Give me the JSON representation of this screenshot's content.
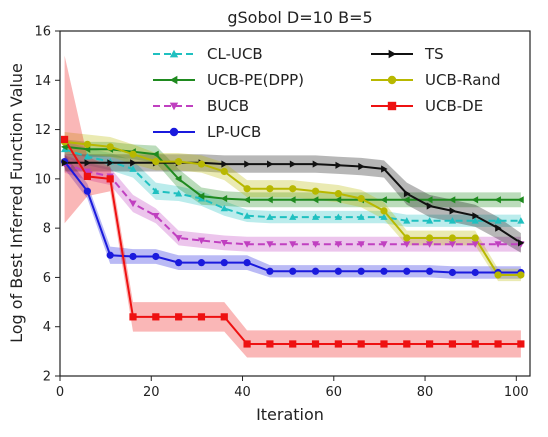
{
  "chart_data": {
    "type": "line",
    "title": "gSobol D=10 B=5",
    "xlabel": "Iteration",
    "ylabel": "Log of Best Inferred Function Value",
    "xlim": [
      0,
      103
    ],
    "ylim": [
      2,
      16
    ],
    "xticks": [
      0,
      20,
      40,
      60,
      80,
      100
    ],
    "yticks": [
      2,
      4,
      6,
      8,
      10,
      12,
      14,
      16
    ],
    "grid": false,
    "legend_position": "top",
    "series": [
      {
        "name": "CL-UCB",
        "color": "#1fc0c0",
        "marker": "triangle-up",
        "dash": "dashed",
        "x": [
          1,
          6,
          11,
          16,
          21,
          26,
          31,
          36,
          41,
          46,
          51,
          56,
          61,
          66,
          71,
          76,
          81,
          86,
          91,
          96,
          101
        ],
        "y": [
          11.2,
          10.9,
          10.7,
          10.4,
          9.5,
          9.4,
          9.2,
          8.8,
          8.5,
          8.45,
          8.45,
          8.45,
          8.45,
          8.45,
          8.45,
          8.3,
          8.3,
          8.3,
          8.3,
          8.3,
          8.3
        ],
        "band": [
          0.35,
          0.35,
          0.35,
          0.35,
          0.35,
          0.3,
          0.3,
          0.3,
          0.25,
          0.25,
          0.25,
          0.25,
          0.25,
          0.25,
          0.25,
          0.25,
          0.25,
          0.25,
          0.25,
          0.25,
          0.25
        ]
      },
      {
        "name": "UCB-PE(DPP)",
        "color": "#1f8a1f",
        "marker": "triangle-left",
        "dash": "solid",
        "x": [
          1,
          6,
          11,
          16,
          21,
          26,
          31,
          36,
          41,
          46,
          51,
          56,
          61,
          66,
          71,
          76,
          81,
          86,
          91,
          96,
          101
        ],
        "y": [
          11.3,
          11.2,
          11.2,
          11.1,
          11.0,
          10.0,
          9.3,
          9.2,
          9.15,
          9.15,
          9.15,
          9.15,
          9.15,
          9.15,
          9.15,
          9.15,
          9.15,
          9.15,
          9.15,
          9.15,
          9.15
        ],
        "band": [
          0.3,
          0.3,
          0.3,
          0.3,
          0.35,
          0.4,
          0.35,
          0.3,
          0.3,
          0.3,
          0.3,
          0.3,
          0.3,
          0.3,
          0.3,
          0.3,
          0.3,
          0.3,
          0.3,
          0.3,
          0.3
        ]
      },
      {
        "name": "BUCB",
        "color": "#c040c0",
        "marker": "triangle-down",
        "dash": "dashed",
        "x": [
          1,
          6,
          11,
          16,
          21,
          26,
          31,
          36,
          41,
          46,
          51,
          56,
          61,
          66,
          71,
          76,
          81,
          86,
          91,
          96,
          101
        ],
        "y": [
          10.6,
          10.3,
          10.1,
          9.0,
          8.5,
          7.6,
          7.5,
          7.4,
          7.35,
          7.35,
          7.35,
          7.35,
          7.35,
          7.35,
          7.35,
          7.35,
          7.35,
          7.35,
          7.35,
          7.35,
          7.35
        ],
        "band": [
          0.35,
          0.35,
          0.35,
          0.35,
          0.3,
          0.3,
          0.3,
          0.3,
          0.3,
          0.3,
          0.3,
          0.3,
          0.3,
          0.3,
          0.3,
          0.3,
          0.3,
          0.3,
          0.3,
          0.3,
          0.3
        ]
      },
      {
        "name": "LP-UCB",
        "color": "#1a1add",
        "marker": "circle",
        "dash": "solid",
        "x": [
          1,
          6,
          11,
          16,
          21,
          26,
          31,
          36,
          41,
          46,
          51,
          56,
          61,
          66,
          71,
          76,
          81,
          86,
          91,
          96,
          101
        ],
        "y": [
          10.7,
          9.5,
          6.9,
          6.85,
          6.85,
          6.6,
          6.6,
          6.6,
          6.6,
          6.25,
          6.25,
          6.25,
          6.25,
          6.25,
          6.25,
          6.25,
          6.25,
          6.2,
          6.2,
          6.2,
          6.2
        ],
        "band": [
          0.3,
          0.3,
          0.35,
          0.3,
          0.3,
          0.3,
          0.3,
          0.3,
          0.3,
          0.25,
          0.25,
          0.25,
          0.25,
          0.25,
          0.25,
          0.25,
          0.25,
          0.25,
          0.25,
          0.25,
          0.25
        ]
      },
      {
        "name": "TS",
        "color": "#111111",
        "marker": "triangle-right",
        "dash": "solid",
        "x": [
          1,
          6,
          11,
          16,
          21,
          26,
          31,
          36,
          41,
          46,
          51,
          56,
          61,
          66,
          71,
          76,
          81,
          86,
          91,
          96,
          101
        ],
        "y": [
          10.65,
          10.65,
          10.65,
          10.65,
          10.65,
          10.65,
          10.65,
          10.6,
          10.6,
          10.6,
          10.6,
          10.6,
          10.55,
          10.5,
          10.4,
          9.4,
          8.9,
          8.7,
          8.5,
          8.0,
          7.4
        ],
        "band": [
          0.35,
          0.35,
          0.35,
          0.35,
          0.35,
          0.35,
          0.35,
          0.35,
          0.35,
          0.35,
          0.35,
          0.35,
          0.35,
          0.35,
          0.35,
          0.45,
          0.45,
          0.45,
          0.45,
          0.45,
          0.4
        ]
      },
      {
        "name": "UCB-Rand",
        "color": "#b8b800",
        "marker": "circle",
        "dash": "solid",
        "x": [
          1,
          6,
          11,
          16,
          21,
          26,
          31,
          36,
          41,
          46,
          51,
          56,
          61,
          66,
          71,
          76,
          81,
          86,
          91,
          96,
          101
        ],
        "y": [
          11.5,
          11.4,
          11.3,
          11.0,
          10.7,
          10.7,
          10.6,
          10.3,
          9.6,
          9.6,
          9.6,
          9.5,
          9.4,
          9.2,
          8.7,
          7.6,
          7.6,
          7.6,
          7.6,
          6.1,
          6.1
        ],
        "band": [
          0.4,
          0.4,
          0.4,
          0.4,
          0.35,
          0.35,
          0.35,
          0.35,
          0.35,
          0.35,
          0.35,
          0.35,
          0.35,
          0.35,
          0.35,
          0.3,
          0.3,
          0.3,
          0.3,
          0.25,
          0.25
        ]
      },
      {
        "name": "UCB-DE",
        "color": "#ee1111",
        "marker": "square",
        "dash": "solid",
        "x": [
          1,
          6,
          11,
          16,
          21,
          26,
          31,
          36,
          41,
          46,
          51,
          56,
          61,
          66,
          71,
          76,
          81,
          86,
          91,
          96,
          101
        ],
        "y": [
          11.6,
          10.1,
          10.0,
          4.4,
          4.4,
          4.4,
          4.4,
          4.4,
          3.3,
          3.3,
          3.3,
          3.3,
          3.3,
          3.3,
          3.3,
          3.3,
          3.3,
          3.3,
          3.3,
          3.3,
          3.3
        ],
        "band": [
          3.4,
          0.8,
          0.5,
          0.6,
          0.6,
          0.6,
          0.6,
          0.6,
          0.55,
          0.55,
          0.55,
          0.55,
          0.55,
          0.55,
          0.55,
          0.55,
          0.55,
          0.55,
          0.55,
          0.55,
          0.55
        ]
      }
    ]
  }
}
